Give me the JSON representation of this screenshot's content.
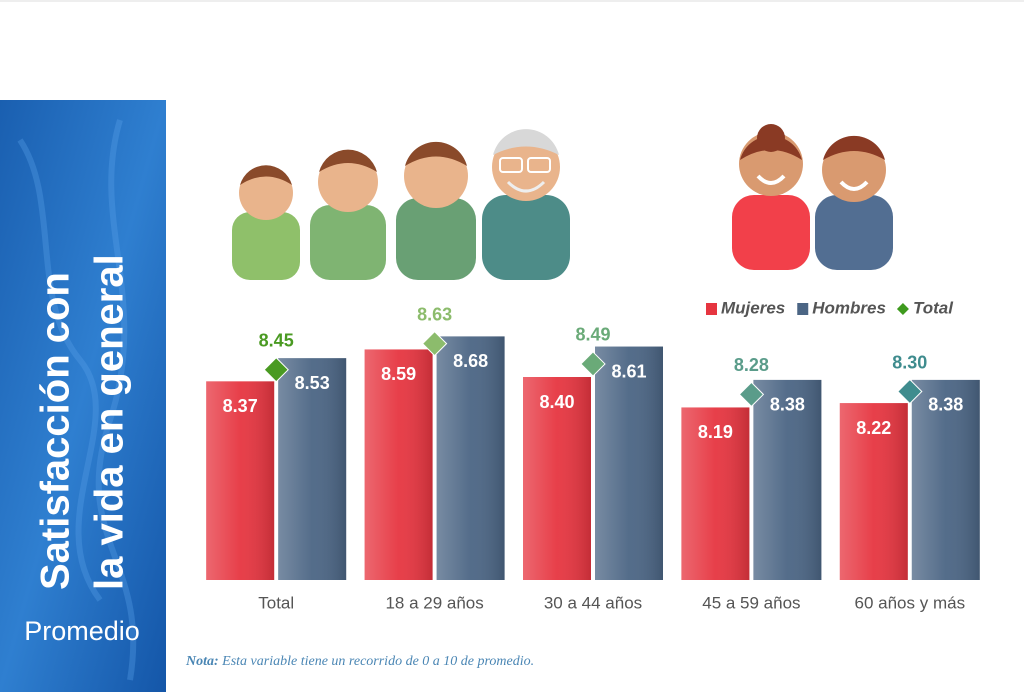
{
  "chart_data": {
    "type": "bar",
    "title_lines": [
      "Satisfacción con",
      "la vida en general"
    ],
    "subtitle": "Promedio",
    "categories": [
      "Total",
      "18 a 29 años",
      "30 a 44 años",
      "45 a 59 años",
      "60 años y más"
    ],
    "series": [
      {
        "name": "Mujeres",
        "color": "#e63540",
        "values": [
          8.37,
          8.59,
          8.4,
          8.19,
          8.22
        ],
        "value_labels": [
          "8.37",
          "8.59",
          "8.40",
          "8.19",
          "8.22"
        ]
      },
      {
        "name": "Hombres",
        "color": "#4b6584",
        "values": [
          8.53,
          8.68,
          8.61,
          8.38,
          8.38
        ],
        "value_labels": [
          "8.53",
          "8.68",
          "8.61",
          "8.38",
          "8.38"
        ]
      },
      {
        "name": "Total",
        "type": "diamond",
        "color": "#3e9a1e",
        "colors": [
          "#4a9a22",
          "#8cbc6c",
          "#6aaa78",
          "#5a9c8a",
          "#3f8c8e"
        ],
        "values": [
          8.45,
          8.63,
          8.49,
          8.28,
          8.3
        ],
        "value_labels": [
          "8.45",
          "8.63",
          "8.49",
          "8.28",
          "8.30"
        ]
      }
    ],
    "ylim": [
      7,
      9
    ],
    "legend": "top-right",
    "note_label": "Nota:",
    "note_text": "Esta variable tiene un recorrido de 0 a 10 de promedio."
  }
}
